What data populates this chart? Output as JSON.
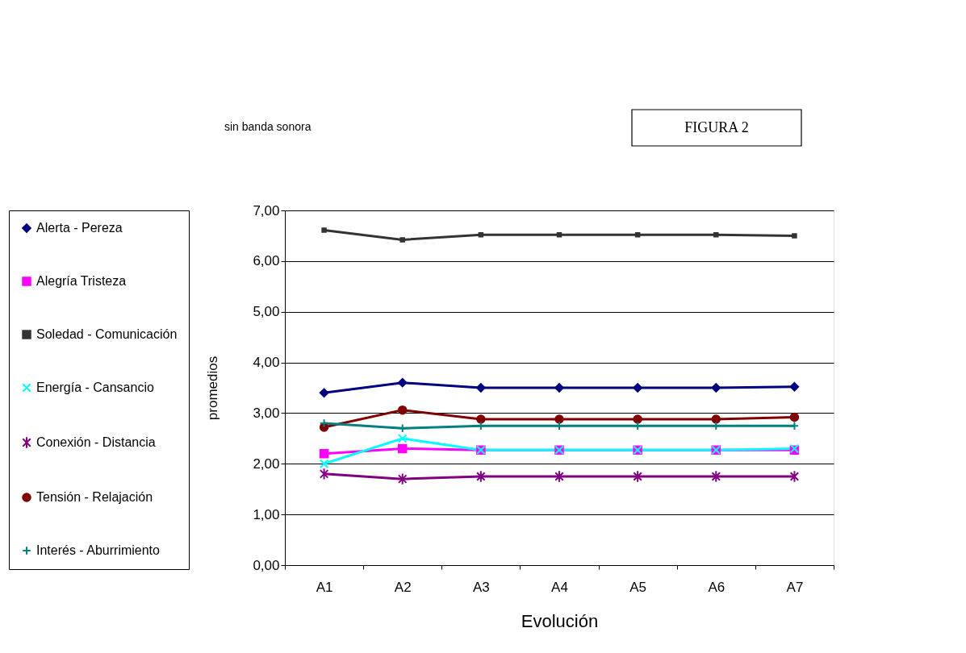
{
  "chart_data": {
    "type": "line",
    "title": "FIGURA 2",
    "subtitle": "sin banda sonora",
    "xlabel": "Evolución",
    "ylabel": "promedios",
    "categories": [
      "A1",
      "A2",
      "A3",
      "A4",
      "A5",
      "A6",
      "A7"
    ],
    "series": [
      {
        "name": "Alerta - Pereza",
        "color": "#000080",
        "marker": "diamond",
        "values": [
          3.4,
          3.6,
          3.5,
          3.5,
          3.5,
          3.5,
          3.52
        ]
      },
      {
        "name": "Alegría Tristeza",
        "color": "#ff00ff",
        "marker": "square",
        "values": [
          2.2,
          2.3,
          2.27,
          2.27,
          2.27,
          2.27,
          2.27
        ]
      },
      {
        "name": "Soledad - Comunicación",
        "color": "#333333",
        "marker": "square",
        "values": [
          6.61,
          6.42,
          6.52,
          6.52,
          6.52,
          6.52,
          6.5
        ]
      },
      {
        "name": "Energía - Cansancio",
        "color": "#00ffff",
        "marker": "cross",
        "values": [
          2.0,
          2.5,
          2.27,
          2.27,
          2.27,
          2.27,
          2.3
        ]
      },
      {
        "name": "Conexión - Distancia",
        "color": "#800080",
        "marker": "cross",
        "values": [
          1.8,
          1.7,
          1.75,
          1.75,
          1.75,
          1.75,
          1.75
        ]
      },
      {
        "name": "Tensión - Relajación",
        "color": "#800000",
        "marker": "circle",
        "values": [
          2.72,
          3.06,
          2.88,
          2.88,
          2.88,
          2.88,
          2.92
        ]
      },
      {
        "name": "Interés - Aburrimiento",
        "color": "#008080",
        "marker": "cross",
        "values": [
          2.8,
          2.7,
          2.75,
          2.75,
          2.75,
          2.75,
          2.75
        ]
      }
    ],
    "ylim": [
      0,
      7
    ],
    "yticks": [
      {
        "value": 0,
        "label": "0,00"
      },
      {
        "value": 1,
        "label": "1,00"
      },
      {
        "value": 2,
        "label": "2,00"
      },
      {
        "value": 3,
        "label": "3,00"
      },
      {
        "value": 4,
        "label": "4,00"
      },
      {
        "value": 5,
        "label": "5,00"
      },
      {
        "value": 6,
        "label": "6,00"
      },
      {
        "value": 7,
        "label": "7,00"
      }
    ],
    "grid": "y",
    "legend": "left",
    "line_style": "solid"
  }
}
